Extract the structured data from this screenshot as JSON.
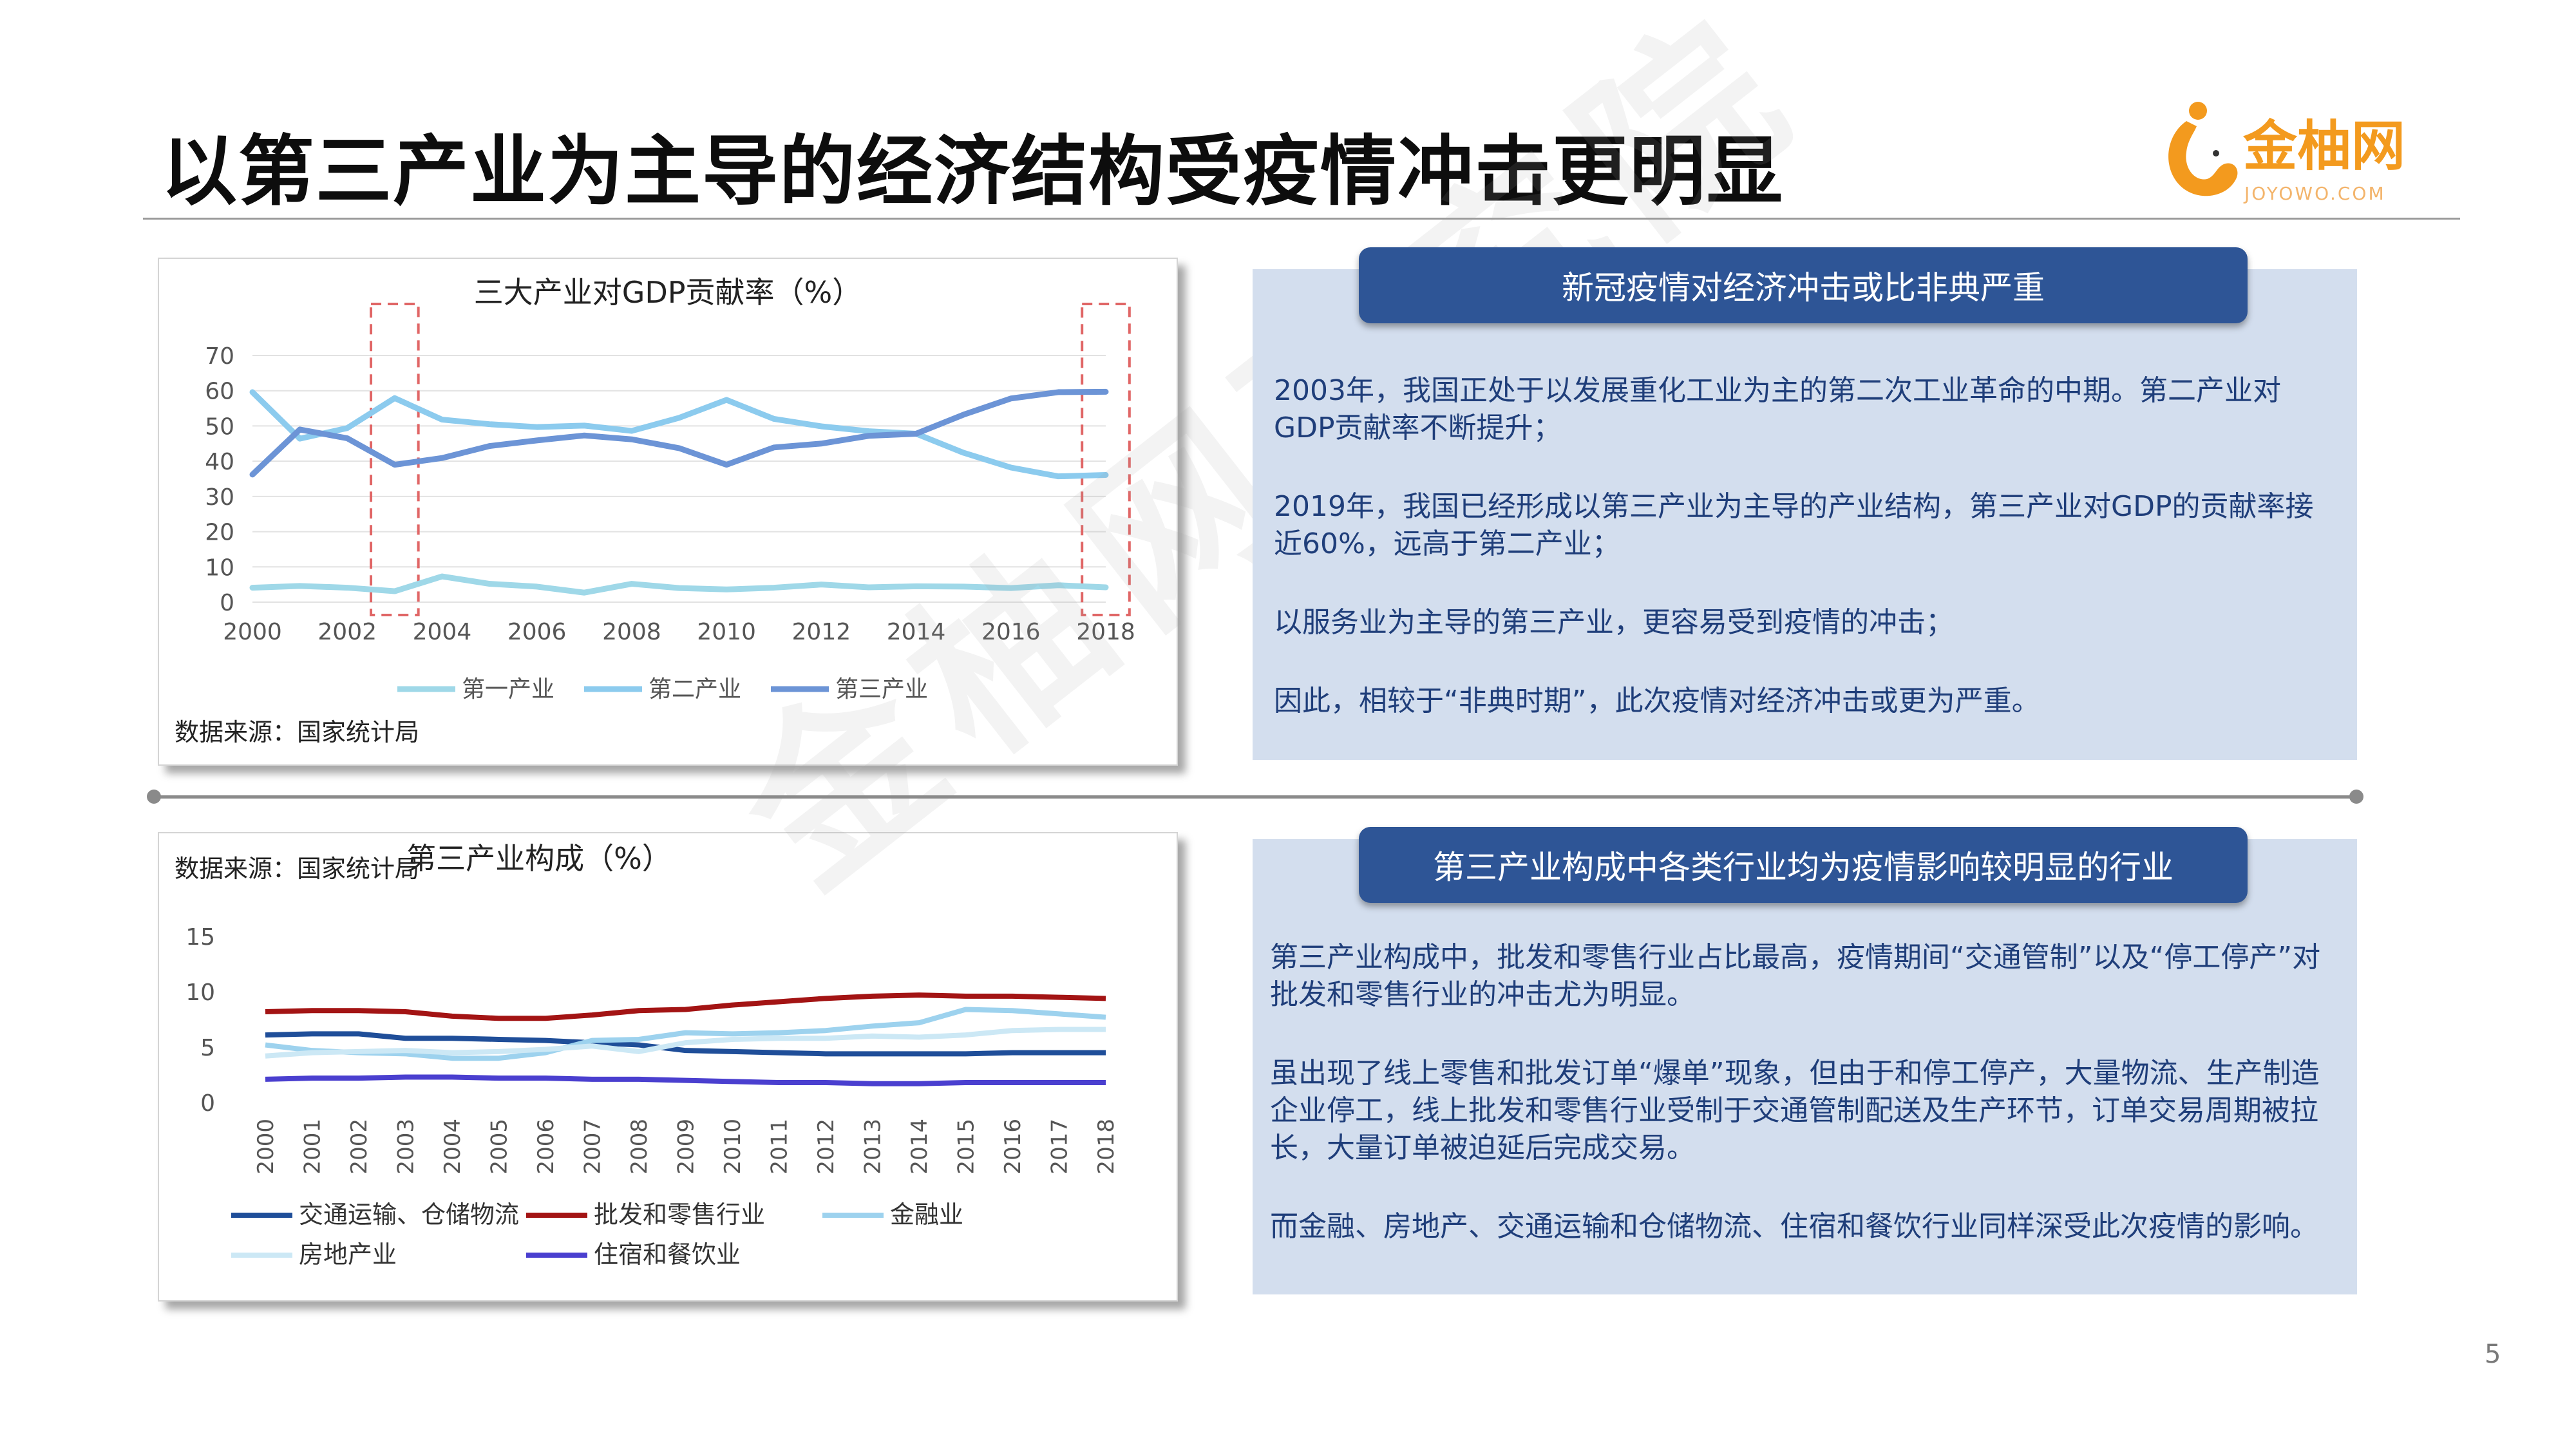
{
  "title": "以第三产业为主导的经济结构受疫情冲击更明显",
  "logo": {
    "text": "金柚网",
    "subtext": "JOYOWO.COM",
    "brand_color": "#f39a1e"
  },
  "watermark": "金柚网研究院",
  "page_number": "5",
  "chart_top": {
    "source": "数据来源：国家统计局",
    "highlight_color": "#e06666"
  },
  "chart_bottom": {
    "source": "数据来源：国家统计局"
  },
  "info_top": {
    "header": "新冠疫情对经济冲击或比非典严重",
    "paragraphs": [
      "2003年，我国正处于以发展重化工业为主的第二次工业革命的中期。第二产业对GDP贡献率不断提升；",
      "2019年，我国已经形成以第三产业为主导的产业结构，第三产业对GDP的贡献率接近60%，远高于第二产业；",
      "以服务业为主导的第三产业，更容易受到疫情的冲击；",
      "因此，相较于“非典时期”，此次疫情对经济冲击或更为严重。"
    ]
  },
  "info_bottom": {
    "header": "第三产业构成中各类行业均为疫情影响较明显的行业",
    "paragraphs": [
      "第三产业构成中，批发和零售行业占比最高，疫情期间“交通管制”以及“停工停产”对批发和零售行业的冲击尤为明显。",
      "虽出现了线上零售和批发订单“爆单”现象，但由于和停工停产，大量物流、生产制造企业停工，线上批发和零售行业受制于交通管制配送及生产环节，订单交易周期被拉长，大量订单被迫延后完成交易。",
      "而金融、房地产、交通运输和仓储物流、住宿和餐饮行业同样深受此次疫情的影响。"
    ]
  },
  "chart_data": [
    {
      "type": "line",
      "title": "三大产业对GDP贡献率（%）",
      "xlabel": "",
      "ylabel": "",
      "x": [
        2000,
        2001,
        2002,
        2003,
        2004,
        2005,
        2006,
        2007,
        2008,
        2009,
        2010,
        2011,
        2012,
        2013,
        2014,
        2015,
        2016,
        2017,
        2018
      ],
      "xticks": [
        "2000",
        "2002",
        "2004",
        "2006",
        "2008",
        "2010",
        "2012",
        "2014",
        "2016",
        "2018"
      ],
      "yticks": [
        "0",
        "10",
        "20",
        "30",
        "40",
        "50",
        "60",
        "70"
      ],
      "ylim": [
        0,
        70
      ],
      "highlight_years": [
        [
          2002.5,
          2003.5
        ],
        [
          2017.5,
          2018.5
        ]
      ],
      "legend_position": "bottom",
      "series": [
        {
          "name": "第一产业",
          "color": "#9fd8e8",
          "values": [
            4.1,
            4.6,
            4.1,
            3.1,
            7.3,
            5.2,
            4.4,
            2.7,
            5.2,
            4.0,
            3.6,
            4.1,
            5.0,
            4.2,
            4.5,
            4.4,
            4.0,
            4.8,
            4.2
          ]
        },
        {
          "name": "第二产业",
          "color": "#8ccbee",
          "values": [
            59.6,
            46.4,
            49.4,
            57.9,
            51.8,
            50.5,
            49.7,
            50.1,
            48.6,
            52.3,
            57.4,
            52.0,
            49.9,
            48.5,
            47.8,
            42.4,
            38.2,
            35.7,
            36.1
          ]
        },
        {
          "name": "第三产业",
          "color": "#6c94d6",
          "values": [
            36.2,
            49.0,
            46.5,
            39.0,
            40.9,
            44.3,
            45.9,
            47.3,
            46.2,
            43.7,
            39.0,
            43.9,
            45.0,
            47.2,
            47.8,
            53.2,
            57.8,
            59.6,
            59.7
          ]
        }
      ]
    },
    {
      "type": "line",
      "title": "第三产业构成（%）",
      "xlabel": "",
      "ylabel": "",
      "x": [
        "2000",
        "2001",
        "2002",
        "2003",
        "2004",
        "2005",
        "2006",
        "2007",
        "2008",
        "2009",
        "2010",
        "2011",
        "2012",
        "2013",
        "2014",
        "2015",
        "2016",
        "2017",
        "2018"
      ],
      "yticks": [
        "0",
        "5",
        "10",
        "15"
      ],
      "ylim": [
        0,
        15
      ],
      "legend_position": "bottom",
      "series": [
        {
          "name": "交通运输、仓储物流",
          "color": "#1f4e99",
          "values": [
            6.1,
            6.2,
            6.2,
            5.8,
            5.8,
            5.7,
            5.6,
            5.4,
            5.2,
            4.7,
            4.6,
            4.5,
            4.4,
            4.4,
            4.4,
            4.4,
            4.5,
            4.5,
            4.5
          ]
        },
        {
          "name": "批发和零售行业",
          "color": "#a31414",
          "values": [
            8.2,
            8.3,
            8.3,
            8.2,
            7.8,
            7.6,
            7.6,
            7.9,
            8.3,
            8.4,
            8.8,
            9.1,
            9.4,
            9.6,
            9.7,
            9.6,
            9.6,
            9.5,
            9.4
          ]
        },
        {
          "name": "金融业",
          "color": "#9dd2ee",
          "values": [
            5.2,
            4.7,
            4.5,
            4.4,
            4.0,
            4.0,
            4.5,
            5.6,
            5.7,
            6.3,
            6.2,
            6.3,
            6.5,
            6.9,
            7.2,
            8.4,
            8.3,
            8.0,
            7.7
          ]
        },
        {
          "name": "房地产业",
          "color": "#cce8f5",
          "values": [
            4.2,
            4.5,
            4.6,
            4.7,
            4.5,
            4.6,
            4.8,
            5.1,
            4.6,
            5.4,
            5.7,
            5.8,
            5.8,
            6.0,
            5.9,
            6.1,
            6.5,
            6.6,
            6.6
          ]
        },
        {
          "name": "住宿和餐饮业",
          "color": "#4a3fcf",
          "values": [
            2.1,
            2.2,
            2.2,
            2.3,
            2.3,
            2.2,
            2.2,
            2.1,
            2.1,
            2.0,
            1.9,
            1.8,
            1.8,
            1.7,
            1.7,
            1.8,
            1.8,
            1.8,
            1.8
          ]
        }
      ]
    }
  ]
}
